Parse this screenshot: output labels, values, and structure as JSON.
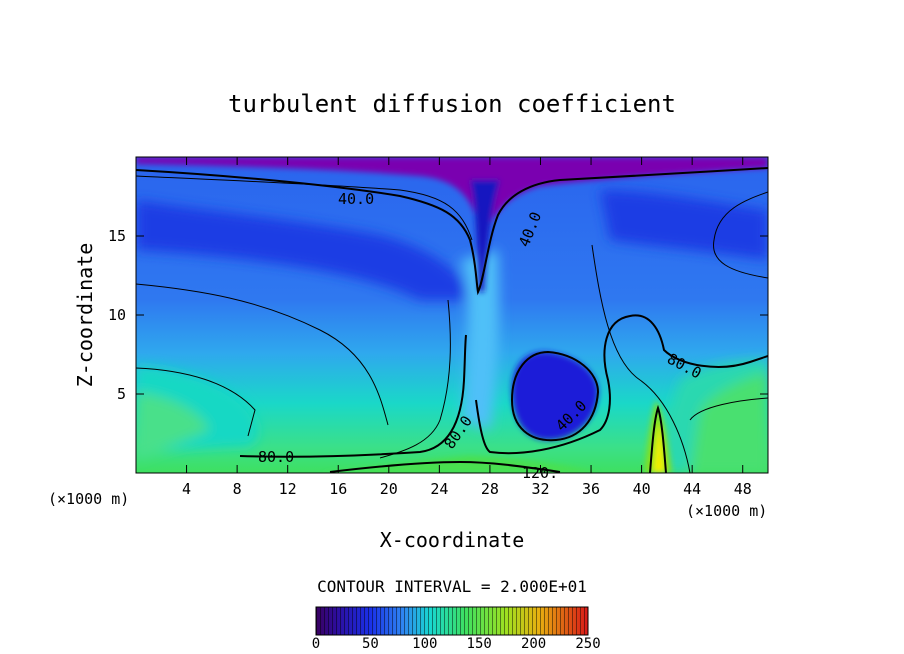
{
  "chart_data": {
    "type": "heatmap",
    "title": "turbulent diffusion coefficient",
    "xlabel": "X-coordinate",
    "ylabel": "Z-coordinate",
    "x_unit": "(×1000 m)",
    "xlim": [
      0,
      50
    ],
    "ylim": [
      0,
      20
    ],
    "x_ticks": [
      4,
      8,
      12,
      16,
      20,
      24,
      28,
      32,
      36,
      40,
      44,
      48
    ],
    "y_ticks": [
      5,
      10,
      15
    ],
    "contour_interval_text": "CONTOUR INTERVAL = 2.000E+01",
    "contour_labels": [
      "40.0",
      "40.0",
      "80.0",
      "80.0",
      "40.0",
      "80.0",
      "120."
    ],
    "colorbar": {
      "min": 0,
      "max": 250,
      "ticks": [
        0,
        50,
        100,
        150,
        200,
        250
      ]
    }
  },
  "colors": {
    "purple": "#7a00b0",
    "deep_blue": "#1420d8",
    "blue": "#2c6cf0",
    "light_blue": "#3fa0f2",
    "cyan": "#16d8c8",
    "green": "#3ee060",
    "yellow": "#f0f000",
    "red": "#d81818"
  }
}
